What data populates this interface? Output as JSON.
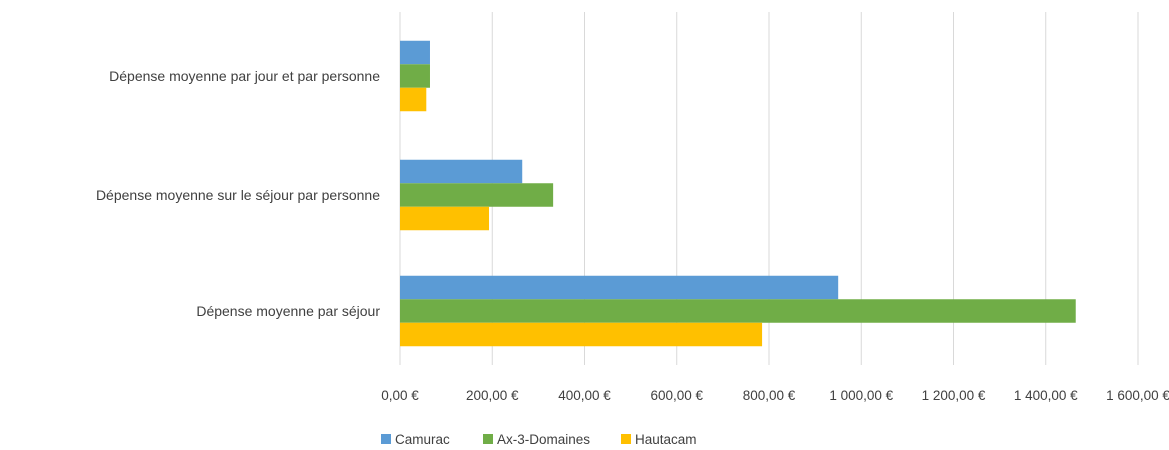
{
  "chart_data": {
    "type": "bar",
    "orientation": "horizontal",
    "categories": [
      "Dépense moyenne par jour et par personne",
      "Dépense moyenne sur le séjour par personne",
      "Dépense moyenne par séjour"
    ],
    "series": [
      {
        "name": "Camurac",
        "color": "#5b9bd5",
        "values": [
          65,
          265,
          950
        ]
      },
      {
        "name": "Ax-3-Domaines",
        "color": "#70ad47",
        "values": [
          65,
          332,
          1465
        ]
      },
      {
        "name": "Hautacam",
        "color": "#ffc000",
        "values": [
          57,
          193,
          785
        ]
      }
    ],
    "xlim": [
      0,
      1600
    ],
    "x_ticks": [
      0,
      200,
      400,
      600,
      800,
      1000,
      1200,
      1400,
      1600
    ],
    "x_tick_labels": [
      "0,00 €",
      "200,00 €",
      "400,00 €",
      "600,00 €",
      "800,00 €",
      "1 000,00 €",
      "1 200,00 €",
      "1 400,00 €",
      "1 600,00 €"
    ],
    "grid": true,
    "legend_position": "bottom",
    "title": "",
    "xlabel": "",
    "ylabel": ""
  }
}
